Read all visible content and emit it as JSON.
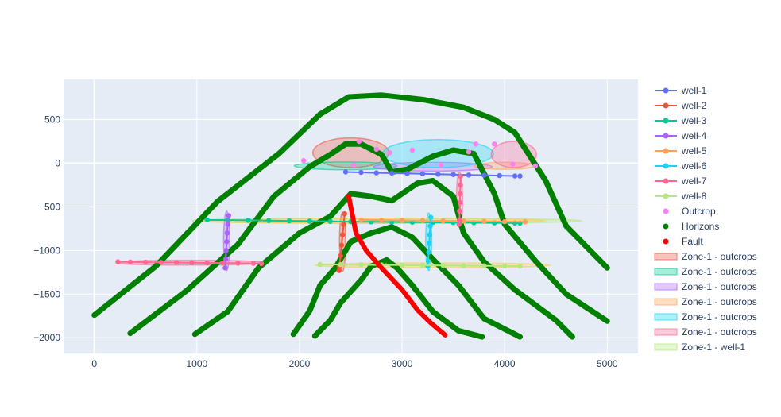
{
  "chart_data": {
    "type": "scatter",
    "title": "",
    "xlabel": "",
    "ylabel": "",
    "xlim": [
      -300,
      5300
    ],
    "ylim": [
      -2180,
      960
    ],
    "x_ticks": [
      0,
      1000,
      2000,
      3000,
      4000,
      5000
    ],
    "y_ticks": [
      -2000,
      -1500,
      -1000,
      -500,
      0,
      500
    ],
    "x_tick_labels": [
      "0",
      "1000",
      "2000",
      "3000",
      "4000",
      "5000"
    ],
    "y_tick_labels": [
      "−2000",
      "−1500",
      "−1000",
      "−500",
      "0",
      "500"
    ],
    "grid": true,
    "background_color": "#e5ecf6",
    "legend_position": "right",
    "wells": [
      {
        "name": "well-1",
        "color": "#636efa",
        "points": [
          [
            2450,
            -100
          ],
          [
            2600,
            -105
          ],
          [
            2750,
            -110
          ],
          [
            2900,
            -113
          ],
          [
            3050,
            -117
          ],
          [
            3200,
            -121
          ],
          [
            3350,
            -126
          ],
          [
            3500,
            -130
          ],
          [
            3650,
            -135
          ],
          [
            3800,
            -138
          ],
          [
            3950,
            -142
          ],
          [
            4100,
            -146
          ],
          [
            4150,
            -147
          ]
        ]
      },
      {
        "name": "well-2",
        "color": "#EF553B",
        "points": [
          [
            2440,
            -580
          ],
          [
            2430,
            -700
          ],
          [
            2420,
            -820
          ],
          [
            2410,
            -940
          ],
          [
            2400,
            -1060
          ],
          [
            2390,
            -1180
          ],
          [
            2385,
            -1230
          ]
        ]
      },
      {
        "name": "well-3",
        "color": "#00cc96",
        "points": [
          [
            1100,
            -650
          ],
          [
            1300,
            -652
          ],
          [
            1500,
            -655
          ],
          [
            1700,
            -658
          ],
          [
            1900,
            -661
          ],
          [
            2100,
            -664
          ],
          [
            2300,
            -667
          ],
          [
            2500,
            -670
          ],
          [
            2700,
            -672
          ],
          [
            2900,
            -674
          ],
          [
            3100,
            -676
          ],
          [
            3300,
            -678
          ],
          [
            3500,
            -680
          ],
          [
            3700,
            -682
          ],
          [
            3900,
            -684
          ],
          [
            4100,
            -686
          ],
          [
            4150,
            -687
          ]
        ]
      },
      {
        "name": "well-4",
        "color": "#ab63fa",
        "points": [
          [
            1310,
            -600
          ],
          [
            1300,
            -700
          ],
          [
            1295,
            -800
          ],
          [
            1290,
            -900
          ],
          [
            1285,
            -1000
          ],
          [
            1280,
            -1100
          ],
          [
            1275,
            -1200
          ]
        ]
      },
      {
        "name": "well-5",
        "color": "#FFA15A",
        "points": [
          [
            2600,
            -650
          ],
          [
            2800,
            -652
          ],
          [
            3000,
            -655
          ],
          [
            3200,
            -658
          ],
          [
            3400,
            -661
          ],
          [
            3600,
            -664
          ],
          [
            3800,
            -667
          ],
          [
            4000,
            -670
          ],
          [
            4200,
            -672
          ]
        ]
      },
      {
        "name": "well-6",
        "color": "#19d3f3",
        "points": [
          [
            3280,
            -620
          ],
          [
            3275,
            -720
          ],
          [
            3270,
            -820
          ],
          [
            3265,
            -920
          ],
          [
            3260,
            -1020
          ],
          [
            3255,
            -1120
          ],
          [
            3250,
            -1180
          ]
        ]
      },
      {
        "name": "well-7",
        "color": "#FF6692",
        "points": [
          [
            230,
            -1130
          ],
          [
            350,
            -1132
          ],
          [
            500,
            -1134
          ],
          [
            650,
            -1136
          ],
          [
            800,
            -1138
          ],
          [
            950,
            -1140
          ],
          [
            1100,
            -1142
          ],
          [
            1250,
            -1144
          ],
          [
            1400,
            -1146
          ],
          [
            1550,
            -1148
          ],
          [
            1630,
            -1150
          ],
          [
            3570,
            -150
          ],
          [
            3570,
            -250
          ],
          [
            3565,
            -350
          ],
          [
            3565,
            -450
          ],
          [
            3560,
            -550
          ],
          [
            3560,
            -650
          ],
          [
            3555,
            -700
          ]
        ]
      },
      {
        "name": "well-8",
        "color": "#B6E880",
        "points": [
          [
            2200,
            -1160
          ],
          [
            2400,
            -1162
          ],
          [
            2600,
            -1164
          ],
          [
            2800,
            -1166
          ],
          [
            3000,
            -1168
          ],
          [
            3200,
            -1170
          ],
          [
            3400,
            -1172
          ],
          [
            3600,
            -1174
          ],
          [
            3800,
            -1176
          ],
          [
            4000,
            -1178
          ],
          [
            4150,
            -1180
          ]
        ]
      }
    ],
    "outcrop": {
      "name": "Outcrop",
      "color": "#ff7ff0",
      "points": [
        [
          2040,
          30
        ],
        [
          2580,
          250
        ],
        [
          2880,
          120
        ],
        [
          2530,
          -20
        ],
        [
          3100,
          150
        ],
        [
          3380,
          -20
        ],
        [
          3720,
          220
        ],
        [
          3900,
          220
        ],
        [
          4080,
          -10
        ],
        [
          4300,
          -30
        ],
        [
          3650,
          130
        ],
        [
          2750,
          160
        ]
      ]
    },
    "horizons": {
      "name": "Horizons",
      "color": "#008000",
      "lines": [
        [
          [
            0,
            -1740
          ],
          [
            600,
            -1180
          ],
          [
            1200,
            -440
          ],
          [
            1800,
            110
          ],
          [
            2200,
            560
          ],
          [
            2480,
            760
          ],
          [
            2800,
            780
          ],
          [
            3200,
            730
          ],
          [
            3600,
            640
          ],
          [
            3900,
            500
          ],
          [
            4100,
            350
          ],
          [
            4400,
            -200
          ],
          [
            4600,
            -720
          ],
          [
            5000,
            -1200
          ]
        ],
        [
          [
            350,
            -1950
          ],
          [
            900,
            -1460
          ],
          [
            1400,
            -930
          ],
          [
            1750,
            -380
          ],
          [
            2100,
            -40
          ],
          [
            2300,
            100
          ],
          [
            2450,
            220
          ],
          [
            2600,
            220
          ],
          [
            2800,
            100
          ],
          [
            2900,
            -100
          ],
          [
            3050,
            -70
          ],
          [
            3300,
            80
          ],
          [
            3500,
            150
          ],
          [
            3700,
            110
          ],
          [
            3900,
            -350
          ],
          [
            4000,
            -700
          ],
          [
            4300,
            -1120
          ],
          [
            4600,
            -1500
          ],
          [
            5000,
            -1810
          ]
        ],
        [
          [
            980,
            -1960
          ],
          [
            1300,
            -1700
          ],
          [
            1600,
            -1200
          ],
          [
            2000,
            -800
          ],
          [
            2300,
            -610
          ],
          [
            2500,
            -350
          ],
          [
            2700,
            -380
          ],
          [
            2900,
            -430
          ],
          [
            3150,
            -230
          ],
          [
            3300,
            -200
          ],
          [
            3500,
            -380
          ],
          [
            3600,
            -800
          ],
          [
            3800,
            -1130
          ],
          [
            4100,
            -1450
          ],
          [
            4500,
            -1800
          ],
          [
            4660,
            -1990
          ]
        ],
        [
          [
            1940,
            -1960
          ],
          [
            2100,
            -1690
          ],
          [
            2200,
            -1400
          ],
          [
            2350,
            -1200
          ],
          [
            2500,
            -900
          ],
          [
            2700,
            -800
          ],
          [
            2900,
            -730
          ],
          [
            3100,
            -850
          ],
          [
            3300,
            -1100
          ],
          [
            3550,
            -1400
          ],
          [
            3800,
            -1780
          ],
          [
            4150,
            -1990
          ]
        ],
        [
          [
            2150,
            -1980
          ],
          [
            2300,
            -1800
          ],
          [
            2400,
            -1600
          ],
          [
            2600,
            -1340
          ],
          [
            2700,
            -1180
          ],
          [
            2850,
            -1110
          ],
          [
            2950,
            -1200
          ],
          [
            3100,
            -1400
          ],
          [
            3300,
            -1700
          ],
          [
            3550,
            -1920
          ],
          [
            3780,
            -1990
          ]
        ]
      ]
    },
    "fault": {
      "name": "Fault",
      "color": "#ff0000",
      "points": [
        [
          2480,
          -380
        ],
        [
          2550,
          -800
        ],
        [
          2650,
          -1000
        ],
        [
          2800,
          -1200
        ],
        [
          3000,
          -1450
        ],
        [
          3150,
          -1680
        ],
        [
          3280,
          -1830
        ],
        [
          3420,
          -1970
        ]
      ]
    },
    "zones": [
      {
        "name": "Zone-1 - outcrops",
        "color": "#EF553B",
        "cx": 2500,
        "cy": 120,
        "rx": 370,
        "ry": 170
      },
      {
        "name": "Zone-1 - outcrops",
        "color": "#00cc96",
        "cx": 2450,
        "cy": -30,
        "rx": 500,
        "ry": 45
      },
      {
        "name": "Zone-1 - outcrops",
        "color": "#ab63fa",
        "cx": 3300,
        "cy": -40,
        "rx": 580,
        "ry": 50
      },
      {
        "name": "Zone-1 - outcrops",
        "color": "#FFA15A",
        "cx": 4000,
        "cy": -30,
        "rx": 300,
        "ry": 40
      },
      {
        "name": "Zone-1 - outcrops",
        "color": "#19d3f3",
        "cx": 3350,
        "cy": 110,
        "rx": 540,
        "ry": 160
      },
      {
        "name": "Zone-1 - outcrops",
        "color": "#FF6692",
        "cx": 4090,
        "cy": 100,
        "rx": 220,
        "ry": 150
      },
      {
        "name": "Zone-1 - well-1",
        "color": "#B6E880",
        "cx": 2850,
        "cy": -660,
        "rx": 1900,
        "ry": 30
      },
      {
        "name": "",
        "color": "#EF553B",
        "cx": 2420,
        "cy": -900,
        "rx": 30,
        "ry": 340
      },
      {
        "name": "",
        "color": "#ab63fa",
        "cx": 1290,
        "cy": -890,
        "rx": 30,
        "ry": 340
      },
      {
        "name": "",
        "color": "#19d3f3",
        "cx": 3260,
        "cy": -900,
        "rx": 30,
        "ry": 330
      },
      {
        "name": "",
        "color": "#FF6692",
        "cx": 3560,
        "cy": -420,
        "rx": 30,
        "ry": 320
      },
      {
        "name": "",
        "color": "#FF6692",
        "cx": 930,
        "cy": -1140,
        "rx": 720,
        "ry": 28
      },
      {
        "name": "",
        "color": "#FECB52",
        "cx": 3300,
        "cy": -1170,
        "rx": 1150,
        "ry": 28
      },
      {
        "name": "",
        "color": "#FECB52",
        "cx": 2700,
        "cy": -660,
        "rx": 1700,
        "ry": 28
      }
    ]
  },
  "legend": [
    {
      "label": "well-1",
      "kind": "line-marker",
      "color": "#636efa"
    },
    {
      "label": "well-2",
      "kind": "line-marker",
      "color": "#EF553B"
    },
    {
      "label": "well-3",
      "kind": "line-marker",
      "color": "#00cc96"
    },
    {
      "label": "well-4",
      "kind": "line-marker",
      "color": "#ab63fa"
    },
    {
      "label": "well-5",
      "kind": "line-marker",
      "color": "#FFA15A"
    },
    {
      "label": "well-6",
      "kind": "line-marker",
      "color": "#19d3f3"
    },
    {
      "label": "well-7",
      "kind": "line-marker",
      "color": "#FF6692"
    },
    {
      "label": "well-8",
      "kind": "line-marker",
      "color": "#B6E880"
    },
    {
      "label": "Outcrop",
      "kind": "marker",
      "color": "#ff7ff0"
    },
    {
      "label": "Horizons",
      "kind": "marker",
      "color": "#008000"
    },
    {
      "label": "Fault",
      "kind": "marker",
      "color": "#ff0000"
    },
    {
      "label": "Zone-1 - outcrops",
      "kind": "fill",
      "color": "#EF553B"
    },
    {
      "label": "Zone-1 - outcrops",
      "kind": "fill",
      "color": "#00cc96"
    },
    {
      "label": "Zone-1 - outcrops",
      "kind": "fill",
      "color": "#ab63fa"
    },
    {
      "label": "Zone-1 - outcrops",
      "kind": "fill",
      "color": "#FFA15A"
    },
    {
      "label": "Zone-1 - outcrops",
      "kind": "fill",
      "color": "#19d3f3"
    },
    {
      "label": "Zone-1 - outcrops",
      "kind": "fill",
      "color": "#FF6692"
    },
    {
      "label": "Zone-1 - well-1",
      "kind": "fill",
      "color": "#B6E880"
    }
  ]
}
